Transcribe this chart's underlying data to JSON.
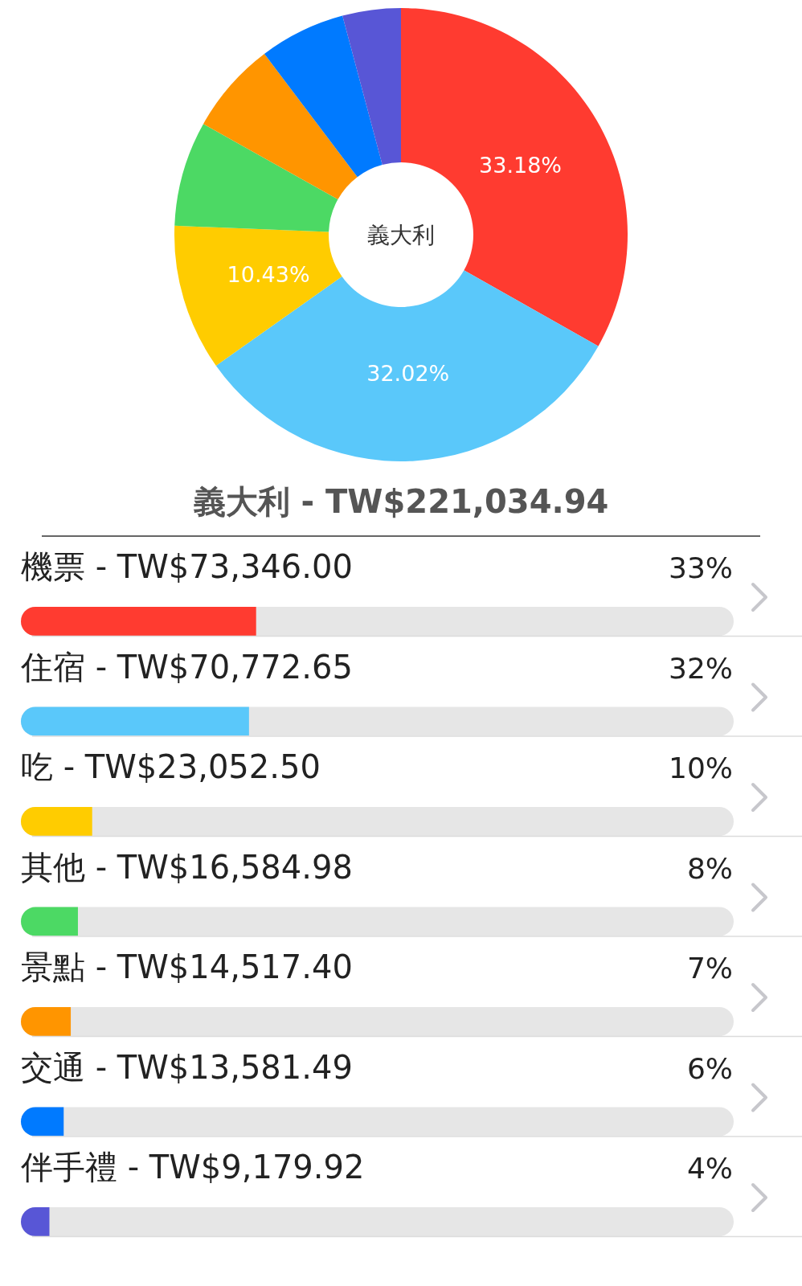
{
  "chart_data": [
    {
      "type": "donut",
      "title": "義大利",
      "categories": [
        null,
        null,
        null,
        null,
        null,
        null,
        null
      ],
      "values": [
        33.18,
        32.02,
        10.43,
        7.5,
        6.57,
        6.14,
        4.16
      ],
      "colors": [
        "#ff3b30",
        "#5ac8fa",
        "#ffcc00",
        "#4cd964",
        "#ff9500",
        "#007aff",
        "#5856d6"
      ],
      "value_labels": [
        "33.18%",
        "32.02%",
        "10.43%",
        null,
        null,
        null,
        null
      ]
    },
    {
      "type": "bar",
      "orientation": "horizontal",
      "title": "義大利 - TW$221,034.94",
      "categories": [
        "機票 - TW$73,346.00",
        "住宿 - TW$70,772.65",
        "吃 - TW$23,052.50",
        "其他 - TW$16,584.98",
        "景點 - TW$14,517.40",
        "交通 - TW$13,581.49",
        "伴手禮 - TW$9,179.92"
      ],
      "values": [
        33,
        32,
        10,
        8,
        7,
        6,
        4
      ],
      "colors": [
        "#ff3b30",
        "#5ac8fa",
        "#ffcc00",
        "#4cd964",
        "#ff9500",
        "#007aff",
        "#5856d6"
      ],
      "value_labels": [
        "33%",
        "32%",
        "10%",
        "8%",
        "7%",
        "6%",
        "4%"
      ],
      "xlim": [
        0,
        100
      ]
    }
  ]
}
